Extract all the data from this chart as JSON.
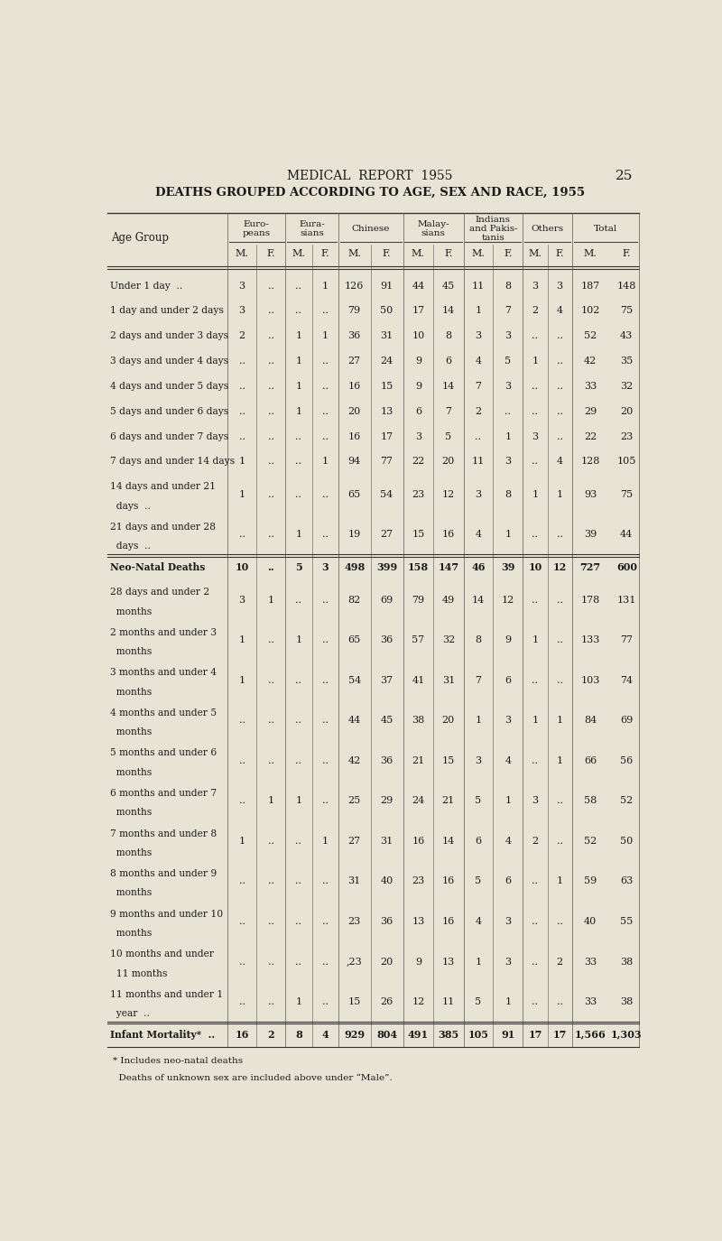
{
  "page_header": "MEDICAL  REPORT  1955",
  "page_number": "25",
  "title": "DEATHS GROUPED ACCORDING TO AGE, SEX AND RACE, 1955",
  "bg_color": "#e8e4d5",
  "col_groups": [
    "Euro-\npeans",
    "Eura-\nsians",
    "Chinese",
    "Malay-\nsians",
    "Indians\nand Pakis-\ntanis",
    "Others",
    "Total"
  ],
  "col_subheaders": [
    "M.",
    "F.",
    "M.",
    "F.",
    "M.",
    "F.",
    "M.",
    "F.",
    "M.",
    "F.",
    "M.",
    "F.",
    "M.",
    "F."
  ],
  "rows": [
    {
      "label": "Under 1 day",
      "label2": "..",
      "values": [
        "3",
        "..",
        "..",
        "1",
        "126",
        "91",
        "44",
        "45",
        "11",
        "8",
        "3",
        "3",
        "187",
        "148"
      ],
      "bold": false,
      "two_line": false,
      "separator": false
    },
    {
      "label": "1 day and under 2 days",
      "label2": "",
      "values": [
        "3",
        "..",
        "..",
        "..",
        "79",
        "50",
        "17",
        "14",
        "1",
        "7",
        "2",
        "4",
        "102",
        "75"
      ],
      "bold": false,
      "two_line": false,
      "separator": false
    },
    {
      "label": "2 days and under 3 days",
      "label2": "",
      "values": [
        "2",
        "..",
        "1",
        "1",
        "36",
        "31",
        "10",
        "8",
        "3",
        "3",
        "..",
        "..",
        "52",
        "43"
      ],
      "bold": false,
      "two_line": false,
      "separator": false
    },
    {
      "label": "3 days and under 4 days",
      "label2": "",
      "values": [
        "..",
        "..",
        "1",
        "..",
        "27",
        "24",
        "9",
        "6",
        "4",
        "5",
        "1",
        "..",
        "42",
        "35"
      ],
      "bold": false,
      "two_line": false,
      "separator": false
    },
    {
      "label": "4 days and under 5 days",
      "label2": "",
      "values": [
        "..",
        "..",
        "1",
        "..",
        "16",
        "15",
        "9",
        "14",
        "7",
        "3",
        "..",
        "..",
        "33",
        "32"
      ],
      "bold": false,
      "two_line": false,
      "separator": false
    },
    {
      "label": "5 days and under 6 days",
      "label2": "",
      "values": [
        "..",
        "..",
        "1",
        "..",
        "20",
        "13",
        "6",
        "7",
        "2",
        "..",
        "..",
        "..",
        "29",
        "20"
      ],
      "bold": false,
      "two_line": false,
      "separator": false
    },
    {
      "label": "6 days and under 7 days",
      "label2": "",
      "values": [
        "..",
        "..",
        "..",
        "..",
        "16",
        "17",
        "3",
        "5",
        "..",
        "1",
        "3",
        "..",
        "22",
        "23"
      ],
      "bold": false,
      "two_line": false,
      "separator": false
    },
    {
      "label": "7 days and under 14 days",
      "label2": "",
      "values": [
        "1",
        "..",
        "..",
        "1",
        "94",
        "77",
        "22",
        "20",
        "11",
        "3",
        "..",
        "4",
        "128",
        "105"
      ],
      "bold": false,
      "two_line": false,
      "separator": false
    },
    {
      "label": "14 days and under 21",
      "label_cont": "  days  ..",
      "values": [
        "1",
        "..",
        "..",
        "..",
        "65",
        "54",
        "23",
        "12",
        "3",
        "8",
        "1",
        "1",
        "93",
        "75"
      ],
      "bold": false,
      "two_line": true,
      "separator": false
    },
    {
      "label": "21 days and under 28",
      "label_cont": "  days  ..",
      "values": [
        "..",
        "..",
        "1",
        "..",
        "19",
        "27",
        "15",
        "16",
        "4",
        "1",
        "..",
        "..",
        "39",
        "44"
      ],
      "bold": false,
      "two_line": true,
      "separator": false
    },
    {
      "label": "Neo-Natal Deaths",
      "label2": "",
      "values": [
        "10",
        "..",
        "5",
        "3",
        "498",
        "399",
        "158",
        "147",
        "46",
        "39",
        "10",
        "12",
        "727",
        "600"
      ],
      "bold": true,
      "two_line": false,
      "separator": true
    },
    {
      "label": "28 days and under 2",
      "label_cont": "  months",
      "values": [
        "3",
        "1",
        "..",
        "..",
        "82",
        "69",
        "79",
        "49",
        "14",
        "12",
        "..",
        "..",
        "178",
        "131"
      ],
      "bold": false,
      "two_line": true,
      "separator": false
    },
    {
      "label": "2 months and under 3",
      "label_cont": "  months",
      "values": [
        "1",
        "..",
        "1",
        "..",
        "65",
        "36",
        "57",
        "32",
        "8",
        "9",
        "1",
        "..",
        "133",
        "77"
      ],
      "bold": false,
      "two_line": true,
      "separator": false
    },
    {
      "label": "3 months and under 4",
      "label_cont": "  months",
      "values": [
        "1",
        "..",
        "..",
        "..",
        "54",
        "37",
        "41",
        "31",
        "7",
        "6",
        "..",
        "..",
        "103",
        "74"
      ],
      "bold": false,
      "two_line": true,
      "separator": false
    },
    {
      "label": "4 months and under 5",
      "label_cont": "  months",
      "values": [
        "..",
        "..",
        "..",
        "..",
        "44",
        "45",
        "38",
        "20",
        "1",
        "3",
        "1",
        "1",
        "84",
        "69"
      ],
      "bold": false,
      "two_line": true,
      "separator": false
    },
    {
      "label": "5 months and under 6",
      "label_cont": "  months",
      "values": [
        "..",
        "..",
        "..",
        "..",
        "42",
        "36",
        "21",
        "15",
        "3",
        "4",
        "..",
        "1",
        "66",
        "56"
      ],
      "bold": false,
      "two_line": true,
      "separator": false
    },
    {
      "label": "6 months and under 7",
      "label_cont": "  months",
      "values": [
        "..",
        "1",
        "1",
        "..",
        "25",
        "29",
        "24",
        "21",
        "5",
        "1",
        "3",
        "..",
        "58",
        "52"
      ],
      "bold": false,
      "two_line": true,
      "separator": false
    },
    {
      "label": "7 months and under 8",
      "label_cont": "  months",
      "values": [
        "1",
        "..",
        "..",
        "1",
        "27",
        "31",
        "16",
        "14",
        "6",
        "4",
        "2",
        "..",
        "52",
        "50"
      ],
      "bold": false,
      "two_line": true,
      "separator": false
    },
    {
      "label": "8 months and under 9",
      "label_cont": "  months",
      "values": [
        "..",
        "..",
        "..",
        "..",
        "31",
        "40",
        "23",
        "16",
        "5",
        "6",
        "..",
        "1",
        "59",
        "63"
      ],
      "bold": false,
      "two_line": true,
      "separator": false
    },
    {
      "label": "9 months and under 10",
      "label_cont": "  months",
      "values": [
        "..",
        "..",
        "..",
        "..",
        "23",
        "36",
        "13",
        "16",
        "4",
        "3",
        "..",
        "..",
        "40",
        "55"
      ],
      "bold": false,
      "two_line": true,
      "separator": false
    },
    {
      "label": "10 months and under",
      "label_cont": "  11 months",
      "values": [
        "..",
        "..",
        "..",
        "..",
        ",23",
        "20",
        "9",
        "13",
        "1",
        "3",
        "..",
        "2",
        "33",
        "38"
      ],
      "bold": false,
      "two_line": true,
      "separator": false
    },
    {
      "label": "11 months and under 1",
      "label_cont": "  year  ..",
      "values": [
        "..",
        "..",
        "1",
        "..",
        "15",
        "26",
        "12",
        "11",
        "5",
        "1",
        "..",
        "..",
        "33",
        "38"
      ],
      "bold": false,
      "two_line": true,
      "separator": false
    },
    {
      "label": "Infant Mortality*",
      "label2": "..",
      "values": [
        "16",
        "2",
        "8",
        "4",
        "929",
        "804",
        "491",
        "385",
        "105",
        "91",
        "17",
        "17",
        "1,566",
        "1,303"
      ],
      "bold": true,
      "two_line": false,
      "separator": true
    }
  ],
  "footnote1": "* Includes neo-natal deaths",
  "footnote2": "  Deaths of unknown sex are included above under “Male”."
}
